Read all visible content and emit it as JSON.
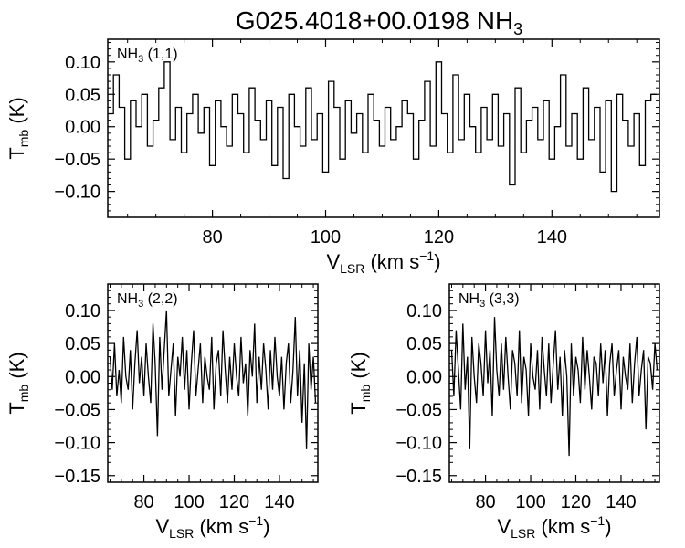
{
  "figure": {
    "title_main": "G025.4018+00.0198 NH",
    "title_sub": "3"
  },
  "chart_data": [
    {
      "type": "line",
      "panel": "NH3 (1,1)",
      "label_main": "NH",
      "label_sub": "3",
      "label_tail": " (1,1)",
      "xlabel_main": "V",
      "xlabel_sub": "LSR",
      "xlabel_tail": " (km s",
      "xlabel_sup": "−1",
      "xlabel_end": ")",
      "ylabel_main": "T",
      "ylabel_sub": "mb",
      "ylabel_tail": " (K)",
      "xlim": [
        61.5,
        159
      ],
      "ylim": [
        -0.14,
        0.135
      ],
      "xticks": [
        80,
        100,
        120,
        140
      ],
      "xtick_labels": [
        "80",
        "100",
        "120",
        "140"
      ],
      "yticks": [
        0.1,
        0.05,
        0.0,
        -0.05,
        -0.1
      ],
      "ytick_labels": [
        "0.10",
        "0.05",
        "0.00",
        "−0.05",
        "−0.10"
      ],
      "style": "histogram",
      "series": [
        {
          "x": [
            62,
            63,
            64,
            65,
            66,
            67,
            68,
            69,
            70,
            71,
            72,
            73,
            74,
            75,
            76,
            77,
            78,
            79,
            80,
            81,
            82,
            83,
            84,
            85,
            86,
            87,
            88,
            89,
            90,
            91,
            92,
            93,
            94,
            95,
            96,
            97,
            98,
            99,
            100,
            101,
            102,
            103,
            104,
            105,
            106,
            107,
            108,
            109,
            110,
            111,
            112,
            113,
            114,
            115,
            116,
            117,
            118,
            119,
            120,
            121,
            122,
            123,
            124,
            125,
            126,
            127,
            128,
            129,
            130,
            131,
            132,
            133,
            134,
            135,
            136,
            137,
            138,
            139,
            140,
            141,
            142,
            143,
            144,
            145,
            146,
            147,
            148,
            149,
            150,
            151,
            152,
            153,
            154,
            155,
            156,
            157,
            158
          ],
          "y": [
            0.02,
            0.08,
            0.03,
            -0.05,
            0.04,
            0.0,
            0.05,
            -0.03,
            0.01,
            0.06,
            0.1,
            -0.02,
            0.03,
            -0.04,
            0.02,
            0.05,
            -0.01,
            0.03,
            -0.06,
            0.04,
            0.0,
            -0.03,
            0.05,
            0.02,
            -0.04,
            0.06,
            0.01,
            -0.02,
            0.04,
            -0.06,
            0.03,
            -0.08,
            0.05,
            0.0,
            -0.03,
            0.06,
            -0.02,
            0.02,
            -0.07,
            0.07,
            0.03,
            -0.05,
            0.04,
            -0.01,
            0.02,
            -0.04,
            0.05,
            0.01,
            -0.03,
            0.03,
            -0.02,
            0.0,
            0.04,
            0.02,
            -0.05,
            0.01,
            0.07,
            -0.03,
            0.1,
            0.02,
            -0.04,
            0.08,
            -0.02,
            0.05,
            0.0,
            -0.04,
            0.03,
            -0.02,
            0.05,
            -0.03,
            0.02,
            -0.09,
            0.06,
            -0.04,
            0.01,
            0.03,
            -0.02,
            0.04,
            -0.05,
            0.0,
            0.08,
            -0.03,
            0.02,
            -0.05,
            0.06,
            -0.02,
            0.03,
            -0.07,
            0.04,
            -0.1,
            0.05,
            0.01,
            -0.03,
            0.02,
            -0.06,
            0.04,
            0.05
          ]
        }
      ]
    },
    {
      "type": "line",
      "panel": "NH3 (2,2)",
      "label_main": "NH",
      "label_sub": "3",
      "label_tail": " (2,2)",
      "xlabel_main": "V",
      "xlabel_sub": "LSR",
      "xlabel_tail": " (km s",
      "xlabel_sup": "−1",
      "xlabel_end": ")",
      "ylabel_main": "T",
      "ylabel_sub": "mb",
      "ylabel_tail": " (K)",
      "xlim": [
        64,
        157
      ],
      "ylim": [
        -0.16,
        0.14
      ],
      "xticks": [
        80,
        100,
        120,
        140
      ],
      "xtick_labels": [
        "80",
        "100",
        "120",
        "140"
      ],
      "yticks": [
        0.1,
        0.05,
        0.0,
        -0.05,
        -0.1,
        -0.15
      ],
      "ytick_labels": [
        "0.10",
        "0.05",
        "0.00",
        "−0.05",
        "−0.10",
        "−0.15"
      ],
      "style": "line",
      "series": [
        {
          "x": [
            65,
            66,
            67,
            68,
            69,
            70,
            71,
            72,
            73,
            74,
            75,
            76,
            77,
            78,
            79,
            80,
            81,
            82,
            83,
            84,
            85,
            86,
            87,
            88,
            89,
            90,
            91,
            92,
            93,
            94,
            95,
            96,
            97,
            98,
            99,
            100,
            101,
            102,
            103,
            104,
            105,
            106,
            107,
            108,
            109,
            110,
            111,
            112,
            113,
            114,
            115,
            116,
            117,
            118,
            119,
            120,
            121,
            122,
            123,
            124,
            125,
            126,
            127,
            128,
            129,
            130,
            131,
            132,
            133,
            134,
            135,
            136,
            137,
            138,
            139,
            140,
            141,
            142,
            143,
            144,
            145,
            146,
            147,
            148,
            149,
            150,
            151,
            152,
            153,
            154,
            155,
            156
          ],
          "y": [
            0.03,
            -0.02,
            0.05,
            -0.03,
            0.01,
            -0.04,
            0.06,
            0.0,
            -0.02,
            0.04,
            -0.05,
            0.02,
            0.07,
            -0.01,
            0.03,
            -0.03,
            0.05,
            0.0,
            -0.04,
            0.08,
            0.02,
            -0.09,
            0.06,
            -0.02,
            0.04,
            0.1,
            -0.03,
            0.01,
            0.05,
            -0.06,
            0.03,
            0.0,
            0.06,
            -0.02,
            0.04,
            -0.05,
            0.02,
            0.07,
            -0.03,
            0.01,
            0.05,
            -0.04,
            0.03,
            0.0,
            -0.02,
            0.06,
            -0.05,
            0.02,
            0.04,
            -0.03,
            0.07,
            0.01,
            -0.04,
            0.03,
            -0.02,
            0.05,
            0.0,
            -0.03,
            0.06,
            -0.01,
            0.02,
            -0.06,
            0.04,
            0.0,
            0.08,
            -0.04,
            0.03,
            -0.02,
            0.05,
            0.01,
            -0.05,
            0.04,
            -0.02,
            0.06,
            0.0,
            -0.03,
            0.03,
            -0.05,
            0.02,
            0.05,
            -0.04,
            0.01,
            0.09,
            -0.03,
            0.04,
            -0.07,
            0.02,
            -0.11,
            0.05,
            -0.02,
            0.03,
            -0.04
          ]
        }
      ]
    },
    {
      "type": "line",
      "panel": "NH3 (3,3)",
      "label_main": "NH",
      "label_sub": "3",
      "label_tail": " (3,3)",
      "xlabel_main": "V",
      "xlabel_sub": "LSR",
      "xlabel_tail": " (km s",
      "xlabel_sup": "−1",
      "xlabel_end": ")",
      "ylabel_main": "T",
      "ylabel_sub": "mb",
      "ylabel_tail": " (K)",
      "xlim": [
        64,
        157
      ],
      "ylim": [
        -0.16,
        0.14
      ],
      "xticks": [
        80,
        100,
        120,
        140
      ],
      "xtick_labels": [
        "80",
        "100",
        "120",
        "140"
      ],
      "yticks": [
        0.1,
        0.05,
        0.0,
        -0.05,
        -0.1,
        -0.15
      ],
      "ytick_labels": [
        "0.10",
        "0.05",
        "0.00",
        "−0.05",
        "−0.10",
        "−0.15"
      ],
      "style": "line",
      "series": [
        {
          "x": [
            65,
            66,
            67,
            68,
            69,
            70,
            71,
            72,
            73,
            74,
            75,
            76,
            77,
            78,
            79,
            80,
            81,
            82,
            83,
            84,
            85,
            86,
            87,
            88,
            89,
            90,
            91,
            92,
            93,
            94,
            95,
            96,
            97,
            98,
            99,
            100,
            101,
            102,
            103,
            104,
            105,
            106,
            107,
            108,
            109,
            110,
            111,
            112,
            113,
            114,
            115,
            116,
            117,
            118,
            119,
            120,
            121,
            122,
            123,
            124,
            125,
            126,
            127,
            128,
            129,
            130,
            131,
            132,
            133,
            134,
            135,
            136,
            137,
            138,
            139,
            140,
            141,
            142,
            143,
            144,
            145,
            146,
            147,
            148,
            149,
            150,
            151,
            152,
            153,
            154,
            155,
            156
          ],
          "y": [
            0.04,
            -0.03,
            0.07,
            0.01,
            -0.05,
            0.08,
            -0.02,
            0.03,
            -0.11,
            0.06,
            0.0,
            -0.04,
            0.05,
            0.02,
            -0.03,
            0.07,
            -0.01,
            0.04,
            -0.06,
            0.09,
            0.01,
            -0.03,
            0.05,
            -0.02,
            0.06,
            0.0,
            -0.05,
            0.04,
            0.02,
            -0.03,
            0.07,
            -0.04,
            0.03,
            0.01,
            -0.06,
            0.05,
            0.0,
            -0.02,
            0.04,
            -0.05,
            0.06,
            0.01,
            -0.03,
            0.05,
            -0.04,
            0.02,
            0.07,
            -0.02,
            0.03,
            -0.06,
            0.04,
            0.0,
            -0.12,
            0.05,
            -0.03,
            0.03,
            0.01,
            -0.04,
            0.06,
            -0.02,
            0.04,
            0.0,
            -0.05,
            0.03,
            0.02,
            -0.03,
            0.05,
            -0.01,
            0.04,
            -0.06,
            0.02,
            0.05,
            -0.03,
            0.01,
            0.04,
            -0.05,
            0.03,
            0.0,
            -0.02,
            0.05,
            -0.04,
            0.02,
            0.06,
            -0.03,
            0.01,
            0.04,
            -0.08,
            0.03,
            0.02,
            -0.02,
            0.05,
            0.01
          ]
        }
      ]
    }
  ]
}
